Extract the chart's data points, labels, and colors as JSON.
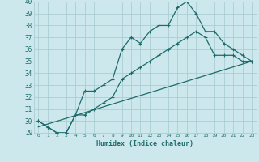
{
  "xlabel": "Humidex (Indice chaleur)",
  "background_color": "#cde8ec",
  "grid_color": "#aacdd4",
  "line_color": "#1e6b6b",
  "xlim": [
    -0.5,
    23.5
  ],
  "ylim": [
    29,
    40
  ],
  "xticks": [
    0,
    1,
    2,
    3,
    4,
    5,
    6,
    7,
    8,
    9,
    10,
    11,
    12,
    13,
    14,
    15,
    16,
    17,
    18,
    19,
    20,
    21,
    22,
    23
  ],
  "yticks": [
    29,
    30,
    31,
    32,
    33,
    34,
    35,
    36,
    37,
    38,
    39,
    40
  ],
  "line1_x": [
    0,
    1,
    2,
    3,
    4,
    5,
    6,
    7,
    8,
    9,
    10,
    11,
    12,
    13,
    14,
    15,
    16,
    17,
    18,
    19,
    20,
    21,
    22,
    23
  ],
  "line1_y": [
    30.0,
    29.5,
    29.0,
    29.0,
    30.5,
    32.5,
    32.5,
    33.0,
    33.5,
    36.0,
    37.0,
    36.5,
    37.5,
    38.0,
    38.0,
    39.5,
    40.0,
    39.0,
    37.5,
    37.5,
    36.5,
    36.0,
    35.5,
    35.0
  ],
  "line2_x": [
    0,
    1,
    2,
    3,
    4,
    5,
    6,
    7,
    8,
    9,
    10,
    11,
    12,
    13,
    14,
    15,
    16,
    17,
    18,
    19,
    20,
    21,
    22,
    23
  ],
  "line2_y": [
    30.0,
    29.5,
    29.0,
    29.0,
    30.5,
    30.5,
    31.0,
    31.5,
    32.0,
    33.5,
    34.0,
    34.5,
    35.0,
    35.5,
    36.0,
    36.5,
    37.0,
    37.5,
    37.0,
    35.5,
    35.5,
    35.5,
    35.0,
    35.0
  ],
  "line3_x": [
    0,
    23
  ],
  "line3_y": [
    29.5,
    35.0
  ]
}
